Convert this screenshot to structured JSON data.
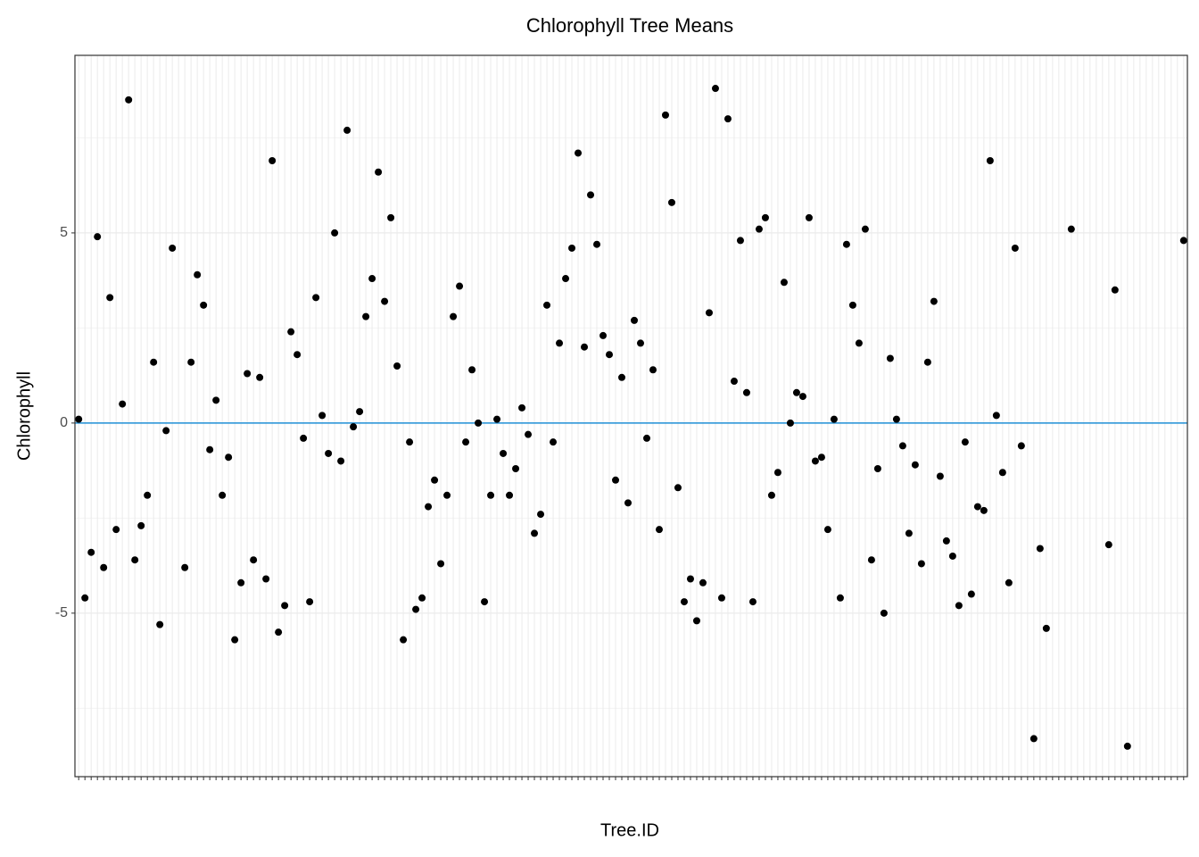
{
  "chart_data": {
    "type": "scatter",
    "title": "Chlorophyll Tree Means",
    "x_label": "Tree.ID",
    "y_label": "Chlorophyll",
    "categories": [
      null,
      null,
      null,
      null,
      null,
      null,
      null,
      null,
      null,
      null,
      null,
      null,
      null,
      null,
      null,
      null,
      null,
      null,
      null,
      null,
      null,
      null,
      null,
      null,
      null,
      null,
      null,
      null,
      null,
      null,
      null,
      null,
      null,
      null,
      null,
      null,
      null,
      null,
      null,
      null,
      null,
      null,
      null,
      null,
      null,
      null,
      null,
      null,
      null,
      null,
      null,
      null,
      null,
      null,
      null,
      null,
      null,
      null,
      null,
      null,
      null,
      null,
      null,
      null,
      null,
      null,
      null,
      null,
      null,
      null,
      null,
      null,
      null,
      null,
      null,
      null,
      null,
      null,
      null,
      null,
      null,
      null,
      null,
      null,
      null,
      null,
      null,
      null,
      null,
      null,
      null,
      null,
      null,
      null,
      null,
      null,
      null,
      null,
      null,
      null,
      null,
      null,
      null,
      null,
      null,
      null,
      null,
      null,
      null,
      null,
      null,
      null,
      null,
      null,
      null,
      null,
      null,
      null,
      null,
      null,
      null,
      null,
      null,
      null,
      null,
      null,
      null,
      null,
      null,
      null,
      null,
      null,
      null,
      null,
      null,
      null,
      null,
      null,
      null,
      null,
      null,
      null,
      null,
      null,
      null,
      null,
      null,
      null,
      null,
      null,
      null,
      null,
      null,
      null,
      null,
      null,
      null,
      null,
      null,
      null,
      null,
      null,
      null,
      null,
      null,
      null,
      null,
      null,
      null,
      null,
      null,
      null,
      null,
      null,
      null,
      null,
      null,
      null
    ],
    "values": [
      0.1,
      -4.6,
      -3.4,
      4.9,
      -3.8,
      3.3,
      -2.8,
      0.5,
      8.5,
      -3.6,
      -2.7,
      -1.9,
      1.6,
      -5.3,
      -0.2,
      4.6,
      null,
      -3.8,
      1.6,
      3.9,
      3.1,
      -0.7,
      0.6,
      -1.9,
      -0.9,
      -5.7,
      -4.2,
      1.3,
      -3.6,
      1.2,
      -4.1,
      6.9,
      -5.5,
      -4.8,
      2.4,
      1.8,
      -0.4,
      -4.7,
      3.3,
      0.2,
      -0.8,
      5.0,
      -1.0,
      7.7,
      -0.1,
      0.3,
      2.8,
      3.8,
      6.6,
      3.2,
      5.4,
      1.5,
      -5.7,
      -0.5,
      -4.9,
      -4.6,
      -2.2,
      -1.5,
      -3.7,
      -1.9,
      2.8,
      3.6,
      -0.5,
      1.4,
      0.0,
      -4.7,
      -1.9,
      0.1,
      -0.8,
      -1.9,
      -1.2,
      0.4,
      -0.3,
      -2.9,
      -2.4,
      3.1,
      -0.5,
      2.1,
      3.8,
      4.6,
      7.1,
      2.0,
      6.0,
      4.7,
      2.3,
      1.8,
      -1.5,
      1.2,
      -2.1,
      2.7,
      2.1,
      -0.4,
      1.4,
      -2.8,
      8.1,
      5.8,
      -1.7,
      -4.7,
      -4.1,
      -5.2,
      -4.2,
      2.9,
      8.8,
      -4.6,
      8.0,
      1.1,
      4.8,
      0.8,
      -4.7,
      5.1,
      5.4,
      -1.9,
      -1.3,
      3.7,
      0.0,
      0.8,
      0.7,
      5.4,
      -1.0,
      -0.9,
      -2.8,
      0.1,
      -4.6,
      4.7,
      3.1,
      2.1,
      5.1,
      -3.6,
      -1.2,
      -5.0,
      1.7,
      0.1,
      -0.6,
      -2.9,
      -1.1,
      -3.7,
      1.6,
      3.2,
      -1.4,
      -3.1,
      -3.5,
      -4.8,
      -0.5,
      -4.5,
      -2.2,
      -2.3,
      6.9,
      0.2,
      -1.3,
      -4.2,
      4.6,
      -0.6,
      null,
      -8.3,
      -3.3,
      -5.4,
      null,
      null,
      null,
      5.1,
      null,
      null,
      null,
      null,
      null,
      -3.2,
      3.5,
      null,
      -8.5,
      null,
      null,
      null,
      null,
      null,
      null,
      null,
      null,
      4.8
    ],
    "color": "#000000",
    "hline": {
      "value": 0,
      "color": "#1f8fd6"
    },
    "ylim": [
      -9.3,
      9.67
    ],
    "yticks": [
      -5,
      0,
      5
    ],
    "grid": true
  }
}
